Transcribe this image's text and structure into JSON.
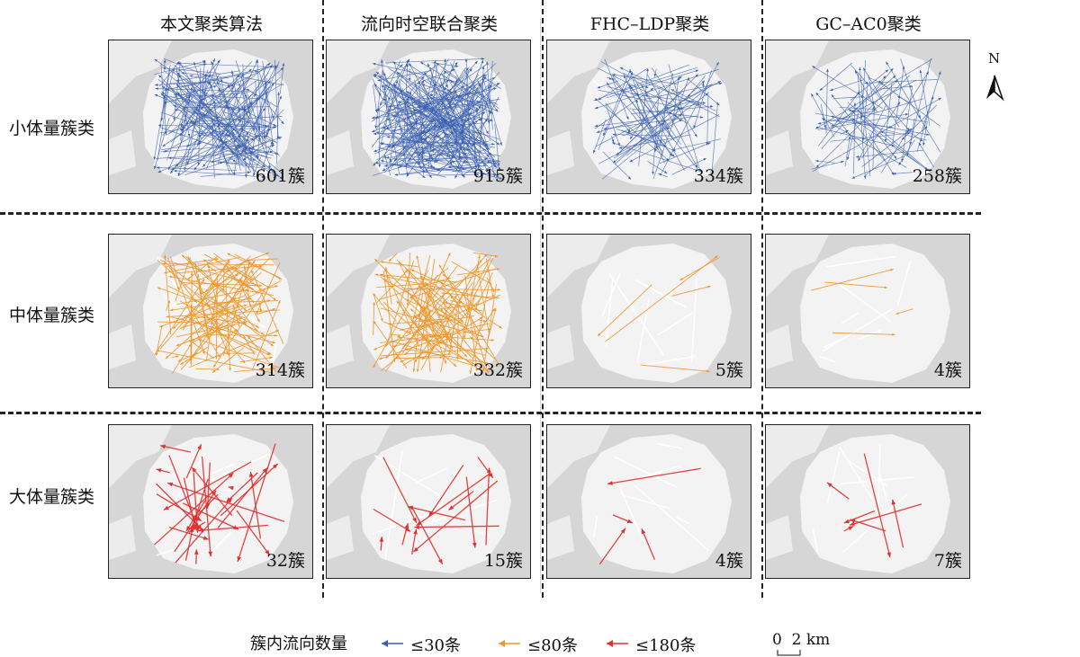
{
  "columns": [
    "本文聚类算法",
    "流向时空联合聚类",
    "FHC–LDP聚类",
    "GC–AC0聚类"
  ],
  "rows": [
    {
      "label": "小体量簇类",
      "color": "#3a5fb0",
      "counts": [
        "601簇",
        "915簇",
        "334簇",
        "258簇"
      ],
      "density": [
        200,
        260,
        90,
        80
      ]
    },
    {
      "label": "中体量簇类",
      "color": "#f0962a",
      "counts": [
        "314簇",
        "332簇",
        "5簇",
        "4簇"
      ],
      "density": [
        110,
        115,
        5,
        4
      ]
    },
    {
      "label": "大体量簇类",
      "color": "#e0302f",
      "counts": [
        "32簇",
        "15簇",
        "4簇",
        "7簇"
      ],
      "density": [
        32,
        15,
        4,
        7
      ]
    }
  ],
  "north": "N",
  "legend": {
    "title": "簇内流向数量",
    "items": [
      {
        "label": "≤30条",
        "color": "#3a5fb0"
      },
      {
        "label": "≤80条",
        "color": "#f0962a"
      },
      {
        "label": "≤180条",
        "color": "#e0302f"
      }
    ]
  },
  "scale": {
    "label": "0  2 km"
  }
}
